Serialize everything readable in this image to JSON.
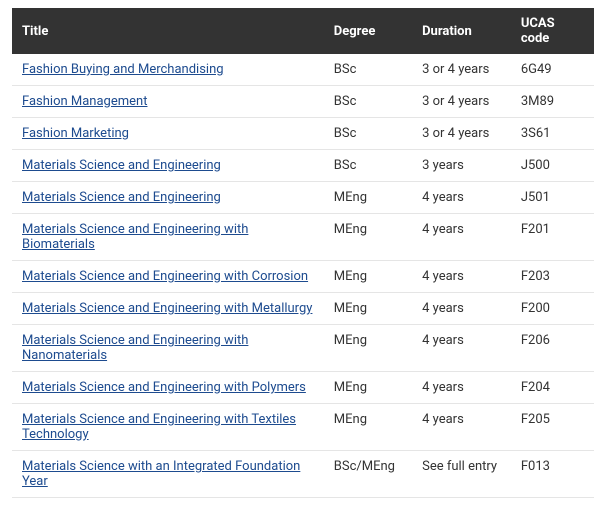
{
  "columns": {
    "title": "Title",
    "degree": "Degree",
    "duration": "Duration",
    "ucas": "UCAS code"
  },
  "rows": [
    {
      "title": "Fashion Buying and Merchandising",
      "degree": "BSc",
      "duration": "3 or 4 years",
      "ucas": "6G49"
    },
    {
      "title": "Fashion Management",
      "degree": "BSc",
      "duration": "3 or 4 years",
      "ucas": "3M89"
    },
    {
      "title": "Fashion Marketing",
      "degree": "BSc",
      "duration": "3 or 4 years",
      "ucas": "3S61"
    },
    {
      "title": "Materials Science and Engineering",
      "degree": "BSc",
      "duration": "3 years",
      "ucas": "J500"
    },
    {
      "title": "Materials Science and Engineering",
      "degree": "MEng",
      "duration": "4 years",
      "ucas": "J501"
    },
    {
      "title": "Materials Science and Engineering with Biomaterials",
      "degree": "MEng",
      "duration": "4 years",
      "ucas": "F201"
    },
    {
      "title": "Materials Science and Engineering with Corrosion",
      "degree": "MEng",
      "duration": "4 years",
      "ucas": "F203"
    },
    {
      "title": "Materials Science and Engineering with Metallurgy",
      "degree": "MEng",
      "duration": "4 years",
      "ucas": "F200"
    },
    {
      "title": "Materials Science and Engineering with Nanomaterials",
      "degree": "MEng",
      "duration": "4 years",
      "ucas": "F206"
    },
    {
      "title": "Materials Science and Engineering with Polymers",
      "degree": "MEng",
      "duration": "4 years",
      "ucas": "F204"
    },
    {
      "title": "Materials Science and Engineering with Textiles Technology",
      "degree": "MEng",
      "duration": "4 years",
      "ucas": "F205"
    },
    {
      "title": "Materials Science with an Integrated Foundation Year",
      "degree": "BSc/MEng",
      "duration": "See full entry",
      "ucas": "F013"
    }
  ]
}
